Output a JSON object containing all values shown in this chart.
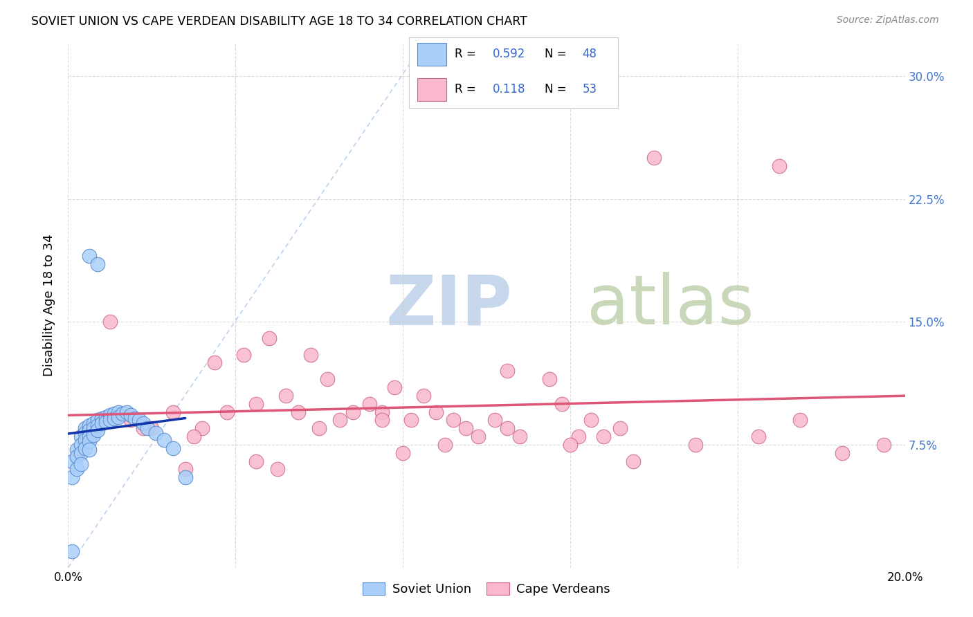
{
  "title": "SOVIET UNION VS CAPE VERDEAN DISABILITY AGE 18 TO 34 CORRELATION CHART",
  "source": "Source: ZipAtlas.com",
  "ylabel": "Disability Age 18 to 34",
  "x_min": 0.0,
  "x_max": 0.2,
  "y_min": 0.0,
  "y_max": 0.32,
  "x_ticks": [
    0.0,
    0.04,
    0.08,
    0.12,
    0.16,
    0.2
  ],
  "y_ticks": [
    0.0,
    0.075,
    0.15,
    0.225,
    0.3
  ],
  "y_tick_labels_right": [
    "",
    "7.5%",
    "15.0%",
    "22.5%",
    "30.0%"
  ],
  "soviet_R": 0.592,
  "soviet_N": 48,
  "cape_R": 0.118,
  "cape_N": 53,
  "soviet_color": "#aacffa",
  "soviet_edge_color": "#5588cc",
  "cape_color": "#f9b8cb",
  "cape_edge_color": "#cc6688",
  "soviet_line_color": "#1133aa",
  "cape_line_color": "#dd5577",
  "diag_line_color": "#aac8ee",
  "watermark_zip_color": "#c8d8ec",
  "watermark_atlas_color": "#c8d8b8",
  "legend_R_color": "#3366cc",
  "legend_N_color": "#3366cc",
  "soviet_scatter_x": [
    0.001,
    0.001,
    0.002,
    0.002,
    0.002,
    0.003,
    0.003,
    0.003,
    0.003,
    0.004,
    0.004,
    0.004,
    0.004,
    0.005,
    0.005,
    0.005,
    0.005,
    0.005,
    0.006,
    0.006,
    0.006,
    0.007,
    0.007,
    0.007,
    0.008,
    0.008,
    0.009,
    0.009,
    0.01,
    0.01,
    0.011,
    0.011,
    0.012,
    0.012,
    0.013,
    0.014,
    0.015,
    0.016,
    0.017,
    0.018,
    0.019,
    0.021,
    0.023,
    0.025,
    0.028,
    0.005,
    0.007,
    0.001
  ],
  "soviet_scatter_y": [
    0.065,
    0.055,
    0.072,
    0.068,
    0.06,
    0.08,
    0.075,
    0.07,
    0.063,
    0.085,
    0.082,
    0.078,
    0.073,
    0.087,
    0.084,
    0.08,
    0.077,
    0.072,
    0.088,
    0.085,
    0.081,
    0.09,
    0.087,
    0.084,
    0.091,
    0.088,
    0.092,
    0.089,
    0.093,
    0.09,
    0.094,
    0.091,
    0.095,
    0.092,
    0.094,
    0.095,
    0.093,
    0.091,
    0.09,
    0.088,
    0.085,
    0.082,
    0.078,
    0.073,
    0.055,
    0.19,
    0.185,
    0.01
  ],
  "cape_scatter_x": [
    0.01,
    0.015,
    0.02,
    0.025,
    0.028,
    0.032,
    0.035,
    0.038,
    0.042,
    0.045,
    0.048,
    0.052,
    0.055,
    0.058,
    0.062,
    0.065,
    0.068,
    0.072,
    0.075,
    0.078,
    0.082,
    0.085,
    0.088,
    0.092,
    0.095,
    0.098,
    0.102,
    0.105,
    0.108,
    0.115,
    0.118,
    0.122,
    0.125,
    0.128,
    0.132,
    0.018,
    0.03,
    0.045,
    0.06,
    0.075,
    0.09,
    0.105,
    0.12,
    0.135,
    0.15,
    0.165,
    0.175,
    0.185,
    0.195,
    0.05,
    0.08,
    0.14,
    0.17
  ],
  "cape_scatter_y": [
    0.15,
    0.09,
    0.085,
    0.095,
    0.06,
    0.085,
    0.125,
    0.095,
    0.13,
    0.1,
    0.14,
    0.105,
    0.095,
    0.13,
    0.115,
    0.09,
    0.095,
    0.1,
    0.095,
    0.11,
    0.09,
    0.105,
    0.095,
    0.09,
    0.085,
    0.08,
    0.09,
    0.085,
    0.08,
    0.115,
    0.1,
    0.08,
    0.09,
    0.08,
    0.085,
    0.085,
    0.08,
    0.065,
    0.085,
    0.09,
    0.075,
    0.12,
    0.075,
    0.065,
    0.075,
    0.08,
    0.09,
    0.07,
    0.075,
    0.06,
    0.07,
    0.25,
    0.245
  ]
}
